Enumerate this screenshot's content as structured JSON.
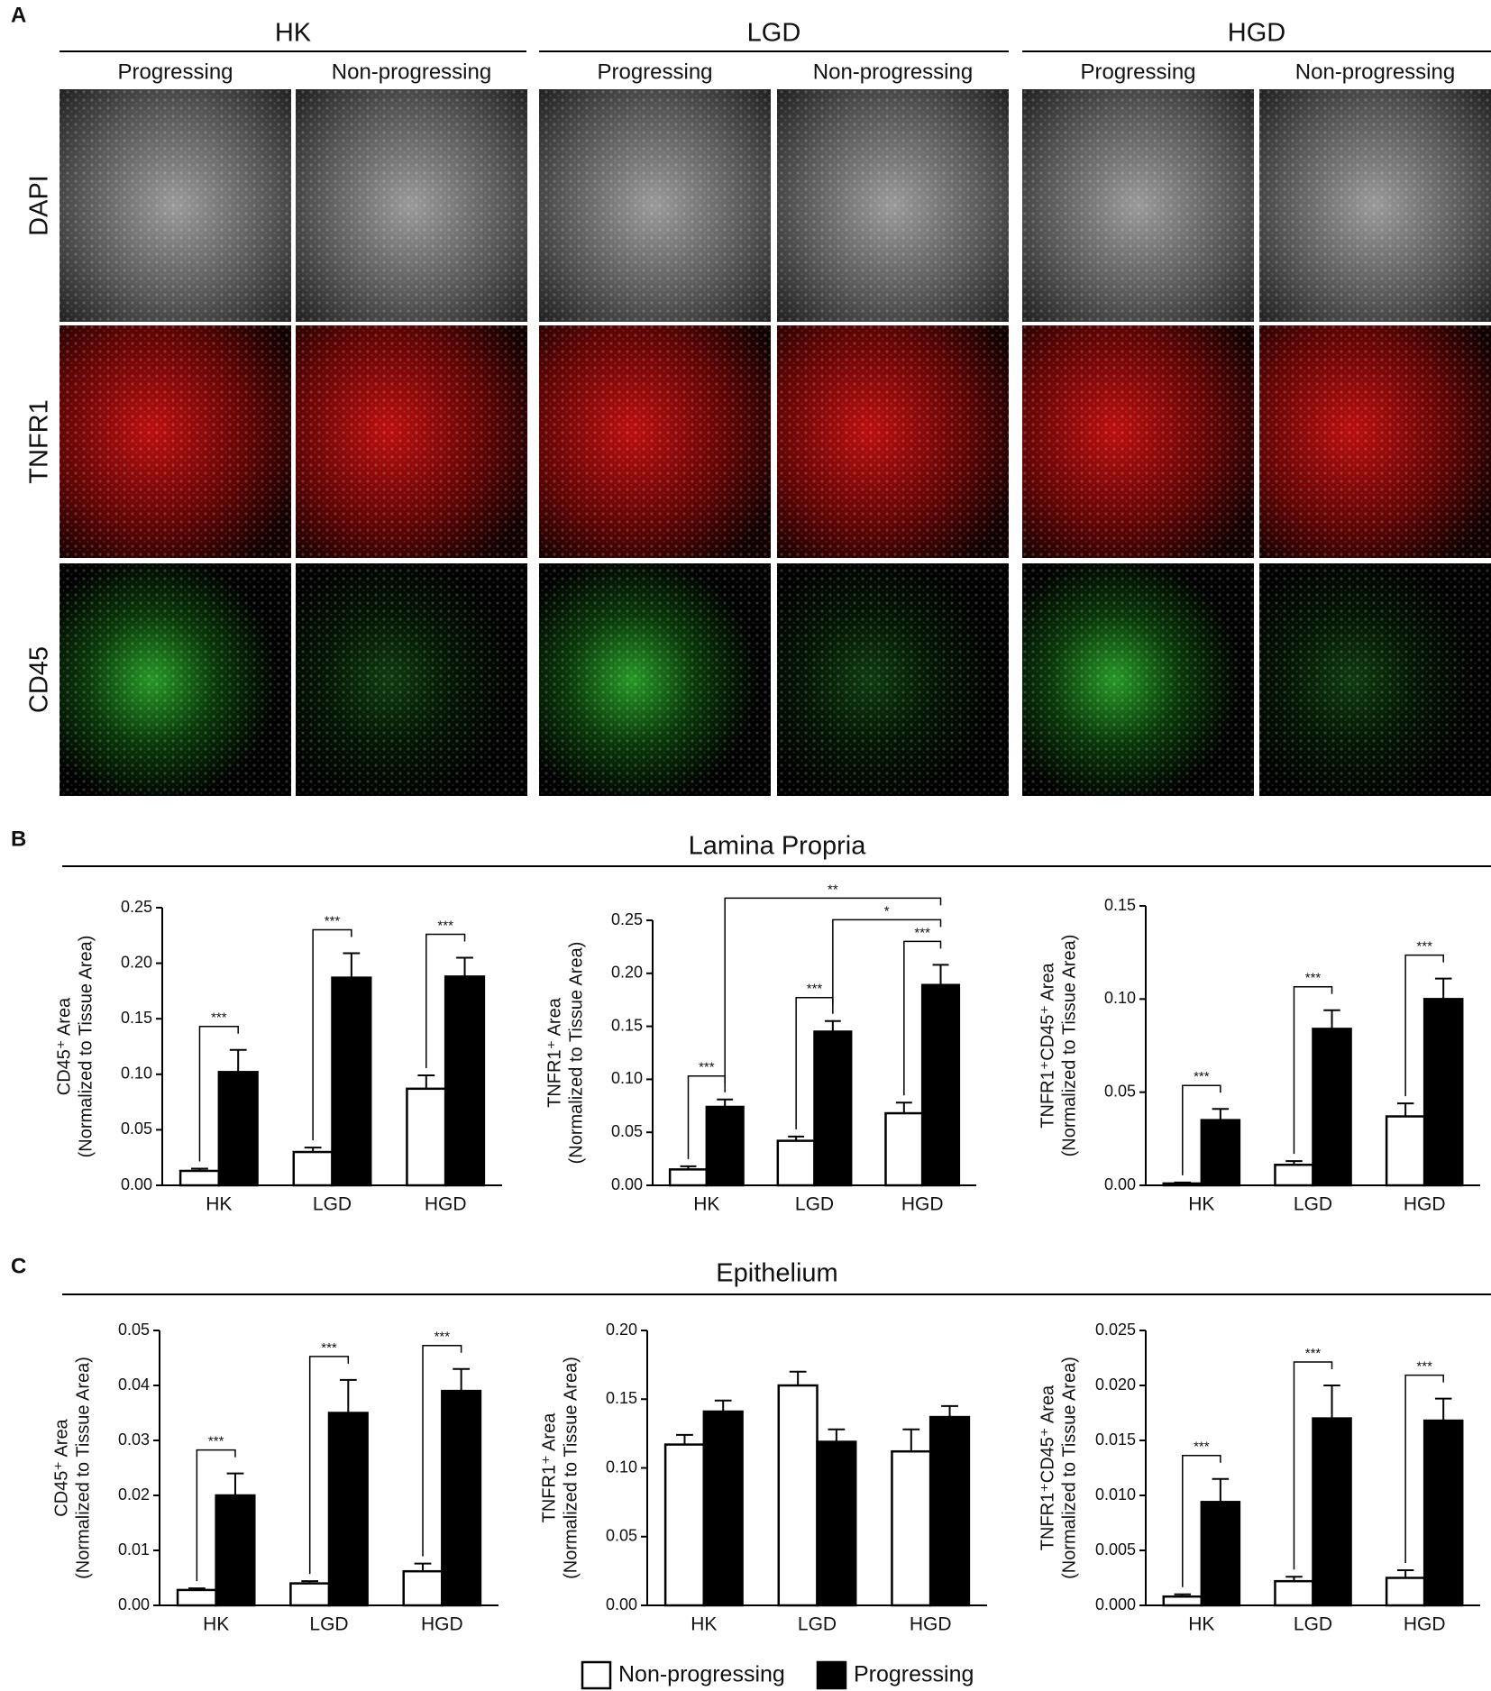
{
  "panel_labels": [
    "A",
    "B",
    "C"
  ],
  "panel_a": {
    "groups": [
      {
        "name": "HK",
        "columns": [
          "Progressing",
          "Non-progressing"
        ]
      },
      {
        "name": "LGD",
        "columns": [
          "Progressing",
          "Non-progressing"
        ]
      },
      {
        "name": "HGD",
        "columns": [
          "Progressing",
          "Non-progressing"
        ]
      }
    ],
    "rows": [
      "DAPI",
      "TNFR1",
      "CD45"
    ]
  },
  "sections": [
    "Lamina Propria",
    "Epithelium"
  ],
  "chart_data": [
    {
      "type": "bar",
      "ylabel": [
        "CD45⁺ Area",
        "(Normalized to Tissue Area)"
      ],
      "categories": [
        "HK",
        "LGD",
        "HGD"
      ],
      "ylim": [
        0,
        0.25
      ],
      "yticks": [
        {
          "value": 0,
          "label": "0.00"
        },
        {
          "value": 0.05,
          "label": "0.05"
        },
        {
          "value": 0.1,
          "label": "0.10"
        },
        {
          "value": 0.15,
          "label": "0.15"
        },
        {
          "value": 0.2,
          "label": "0.20"
        },
        {
          "value": 0.25,
          "label": "0.25"
        }
      ],
      "series": [
        {
          "name": "Non-progressing",
          "color": "#ffffff",
          "values": [
            0.013,
            0.03,
            0.087
          ],
          "errors": [
            0.002,
            0.004,
            0.012
          ]
        },
        {
          "name": "Progressing",
          "color": "#000000",
          "values": [
            0.102,
            0.187,
            0.188
          ],
          "errors": [
            0.02,
            0.022,
            0.017
          ]
        }
      ],
      "annotations": [
        {
          "label": "***",
          "from": [
            0,
            0
          ],
          "to": [
            1,
            0
          ]
        },
        {
          "label": "***",
          "from": [
            0,
            1
          ],
          "to": [
            1,
            1
          ]
        },
        {
          "label": "***",
          "from": [
            0,
            2
          ],
          "to": [
            1,
            2
          ]
        }
      ]
    },
    {
      "type": "bar",
      "ylabel": [
        "TNFR1⁺ Area",
        "(Normalized to Tissue Area)"
      ],
      "categories": [
        "HK",
        "LGD",
        "HGD"
      ],
      "ylim": [
        0,
        0.25
      ],
      "yticks": [
        {
          "value": 0,
          "label": "0.00"
        },
        {
          "value": 0.05,
          "label": "0.05"
        },
        {
          "value": 0.1,
          "label": "0.10"
        },
        {
          "value": 0.15,
          "label": "0.15"
        },
        {
          "value": 0.2,
          "label": "0.20"
        },
        {
          "value": 0.25,
          "label": "0.25"
        }
      ],
      "series": [
        {
          "color": "#ffffff",
          "values": [
            0.015,
            0.042,
            0.068
          ],
          "errors": [
            0.003,
            0.004,
            0.01
          ]
        },
        {
          "color": "#000000",
          "values": [
            0.074,
            0.145,
            0.189
          ],
          "errors": [
            0.007,
            0.01,
            0.019
          ]
        }
      ],
      "annotations": [
        {
          "label": "***",
          "from": [
            0,
            0
          ],
          "to": [
            1,
            0
          ]
        },
        {
          "label": "***",
          "from": [
            0,
            1
          ],
          "to": [
            1,
            1
          ]
        },
        {
          "label": "***",
          "from": [
            0,
            2
          ],
          "to": [
            1,
            2
          ]
        },
        {
          "label": "*",
          "from": [
            1,
            1
          ],
          "to": [
            1,
            2
          ]
        },
        {
          "label": "**",
          "from": [
            1,
            0
          ],
          "to": [
            1,
            2
          ]
        }
      ]
    },
    {
      "type": "bar",
      "ylabel": [
        "TNFR1⁺CD45⁺ Area",
        "(Normalized to Tissue Area)"
      ],
      "categories": [
        "HK",
        "LGD",
        "HGD"
      ],
      "ylim": [
        0,
        0.15
      ],
      "yticks": [
        {
          "value": 0,
          "label": "0.00"
        },
        {
          "value": 0.05,
          "label": "0.05"
        },
        {
          "value": 0.1,
          "label": "0.10"
        },
        {
          "value": 0.15,
          "label": "0.15"
        }
      ],
      "series": [
        {
          "color": "#ffffff",
          "values": [
            0.001,
            0.011,
            0.037
          ],
          "errors": [
            0.0005,
            0.002,
            0.007
          ]
        },
        {
          "color": "#000000",
          "values": [
            0.035,
            0.084,
            0.1
          ],
          "errors": [
            0.006,
            0.01,
            0.011
          ]
        }
      ],
      "annotations": [
        {
          "label": "***",
          "from": [
            0,
            0
          ],
          "to": [
            1,
            0
          ]
        },
        {
          "label": "***",
          "from": [
            0,
            1
          ],
          "to": [
            1,
            1
          ]
        },
        {
          "label": "***",
          "from": [
            0,
            2
          ],
          "to": [
            1,
            2
          ]
        }
      ]
    },
    {
      "type": "bar",
      "ylabel": [
        "CD45⁺ Area",
        "(Normalized to Tissue Area)"
      ],
      "categories": [
        "HK",
        "LGD",
        "HGD"
      ],
      "ylim": [
        0,
        0.05
      ],
      "yticks": [
        {
          "value": 0,
          "label": "0.00"
        },
        0.01,
        0.02,
        0.03,
        0.04,
        0.05
      ],
      "series": [
        {
          "color": "#ffffff",
          "values": [
            0.0028,
            0.004,
            0.0062
          ],
          "errors": [
            0.0003,
            0.0004,
            0.0014
          ]
        },
        {
          "color": "#000000",
          "values": [
            0.02,
            0.035,
            0.039
          ],
          "errors": [
            0.004,
            0.006,
            0.004
          ]
        }
      ],
      "annotations": [
        {
          "label": "***",
          "from": [
            0,
            0
          ],
          "to": [
            1,
            0
          ]
        },
        {
          "label": "***",
          "from": [
            0,
            1
          ],
          "to": [
            1,
            1
          ]
        },
        {
          "label": "***",
          "from": [
            0,
            2
          ],
          "to": [
            1,
            2
          ]
        }
      ]
    },
    {
      "type": "bar",
      "ylabel": [
        "TNFR1⁺ Area",
        "(Normalized to Tissue Area)"
      ],
      "categories": [
        "HK",
        "LGD",
        "HGD"
      ],
      "ylim": [
        0,
        0.2
      ],
      "yticks": [
        {
          "value": 0,
          "label": "0.00"
        },
        {
          "value": 0.05,
          "label": "0.05"
        },
        {
          "value": 0.1,
          "label": "0.10"
        },
        {
          "value": 0.15,
          "label": "0.15"
        },
        {
          "value": 0.2,
          "label": "0.20"
        }
      ],
      "series": [
        {
          "color": "#ffffff",
          "values": [
            0.117,
            0.16,
            0.112
          ],
          "errors": [
            0.007,
            0.01,
            0.016
          ]
        },
        {
          "color": "#000000",
          "values": [
            0.141,
            0.119,
            0.137
          ],
          "errors": [
            0.008,
            0.009,
            0.008
          ]
        }
      ],
      "annotations": []
    },
    {
      "type": "bar",
      "ylabel": [
        "TNFR1⁺CD45⁺ Area",
        "(Normalized to Tissue Area)"
      ],
      "categories": [
        "HK",
        "LGD",
        "HGD"
      ],
      "ylim": [
        0,
        0.025
      ],
      "yticks": [
        {
          "value": 0,
          "label": "0.000"
        },
        0.005,
        {
          "value": 0.01,
          "label": "0.010"
        },
        0.015,
        {
          "value": 0.02,
          "label": "0.020"
        },
        0.025
      ],
      "series": [
        {
          "color": "#ffffff",
          "values": [
            0.0008,
            0.0022,
            0.0025
          ],
          "errors": [
            0.0002,
            0.0004,
            0.0007
          ]
        },
        {
          "color": "#000000",
          "values": [
            0.0094,
            0.017,
            0.0168
          ],
          "errors": [
            0.0021,
            0.003,
            0.002
          ]
        }
      ],
      "annotations": [
        {
          "label": "***",
          "from": [
            0,
            0
          ],
          "to": [
            1,
            0
          ]
        },
        {
          "label": "***",
          "from": [
            0,
            1
          ],
          "to": [
            1,
            1
          ]
        },
        {
          "label": "***",
          "from": [
            0,
            2
          ],
          "to": [
            1,
            2
          ]
        }
      ]
    }
  ]
}
